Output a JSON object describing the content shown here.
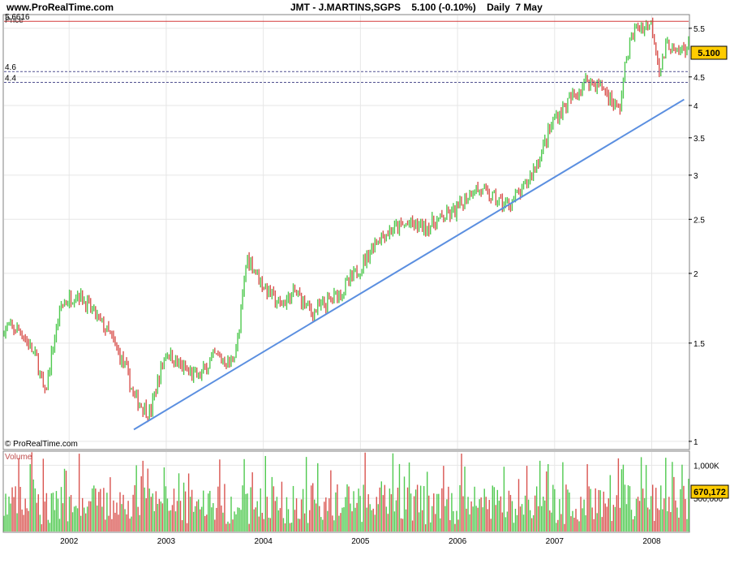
{
  "header": {
    "site": "www.ProRealTime.com",
    "title": "JMT - J.MARTINS,SGPS    5.100 (-0.10%)    Daily  7 May"
  },
  "price_panel": {
    "label": "Price",
    "copyright": "© ProRealTime.com",
    "last_price_badge": "5.100"
  },
  "volume_panel": {
    "label": "Volume",
    "last_volume_badge": "670,172"
  },
  "colors": {
    "up": "#4fc94f",
    "down": "#d9534f",
    "trendline": "#5b8fe0",
    "resistance": "#d33a3a",
    "support": "#505090",
    "badge": "#ffcc00",
    "grid": "#e6e6e6"
  },
  "chart_data": [
    {
      "type": "line",
      "subtype": "candlestick",
      "title": "JMT - J.MARTINS,SGPS",
      "ylabel": "Price",
      "yscale": "log",
      "ylim": [
        0.97,
        5.8
      ],
      "x_tick_labels": [
        "2002",
        "2003",
        "2004",
        "2005",
        "2006",
        "2007",
        "2008"
      ],
      "y_tick_labels": [
        "1",
        "1.5",
        "2",
        "2.5",
        "3",
        "3.5",
        "4",
        "4.5",
        "5.5"
      ],
      "x": [
        "2001-03",
        "2001-05",
        "2001-07",
        "2001-09",
        "2001-10",
        "2001-12",
        "2002-02",
        "2002-04",
        "2002-06",
        "2002-08",
        "2002-09",
        "2002-11",
        "2003-01",
        "2003-03",
        "2003-05",
        "2003-07",
        "2003-09",
        "2003-10",
        "2003-11",
        "2004-01",
        "2004-03",
        "2004-05",
        "2004-07",
        "2004-09",
        "2004-11",
        "2005-01",
        "2005-03",
        "2005-05",
        "2005-07",
        "2005-09",
        "2005-11",
        "2006-01",
        "2006-03",
        "2006-05",
        "2006-07",
        "2006-09",
        "2006-11",
        "2007-01",
        "2007-03",
        "2007-05",
        "2007-07",
        "2007-09",
        "2007-10",
        "2007-11",
        "2008-01",
        "2008-02",
        "2008-03",
        "2008-04",
        "2008-05"
      ],
      "series": [
        {
          "values": [
            1.55,
            1.6,
            1.58,
            1.4,
            1.2,
            1.75,
            1.85,
            1.7,
            1.55,
            1.35,
            1.2,
            1.12,
            1.45,
            1.35,
            1.3,
            1.42,
            1.38,
            1.55,
            2.15,
            1.9,
            1.75,
            1.85,
            1.7,
            1.78,
            1.88,
            2.05,
            2.3,
            2.4,
            2.45,
            2.42,
            2.5,
            2.6,
            2.85,
            2.75,
            2.65,
            2.8,
            3.2,
            3.8,
            4.1,
            4.45,
            4.3,
            3.9,
            5.0,
            5.5,
            5.6,
            4.6,
            5.2,
            4.9,
            5.1
          ]
        }
      ],
      "annotations": [
        {
          "label": "5.6616",
          "value": 5.6616,
          "kind": "horizontal-line"
        },
        {
          "label": "4.6",
          "value": 4.6,
          "kind": "horizontal-line-dashed"
        },
        {
          "label": "4.4",
          "value": 4.4,
          "kind": "horizontal-line-dashed"
        },
        {
          "label": "5.100",
          "value": 5.1,
          "kind": "last-price"
        }
      ],
      "trendline": {
        "from": {
          "x": "2002-09",
          "y": 1.05
        },
        "to": {
          "x": "2008-05",
          "y": 4.1
        }
      }
    },
    {
      "type": "bar",
      "ylabel": "Volume",
      "y_tick_labels": [
        "1,000K",
        "500,000"
      ],
      "ylim": [
        0,
        1200000
      ],
      "last_value": 670172
    }
  ]
}
